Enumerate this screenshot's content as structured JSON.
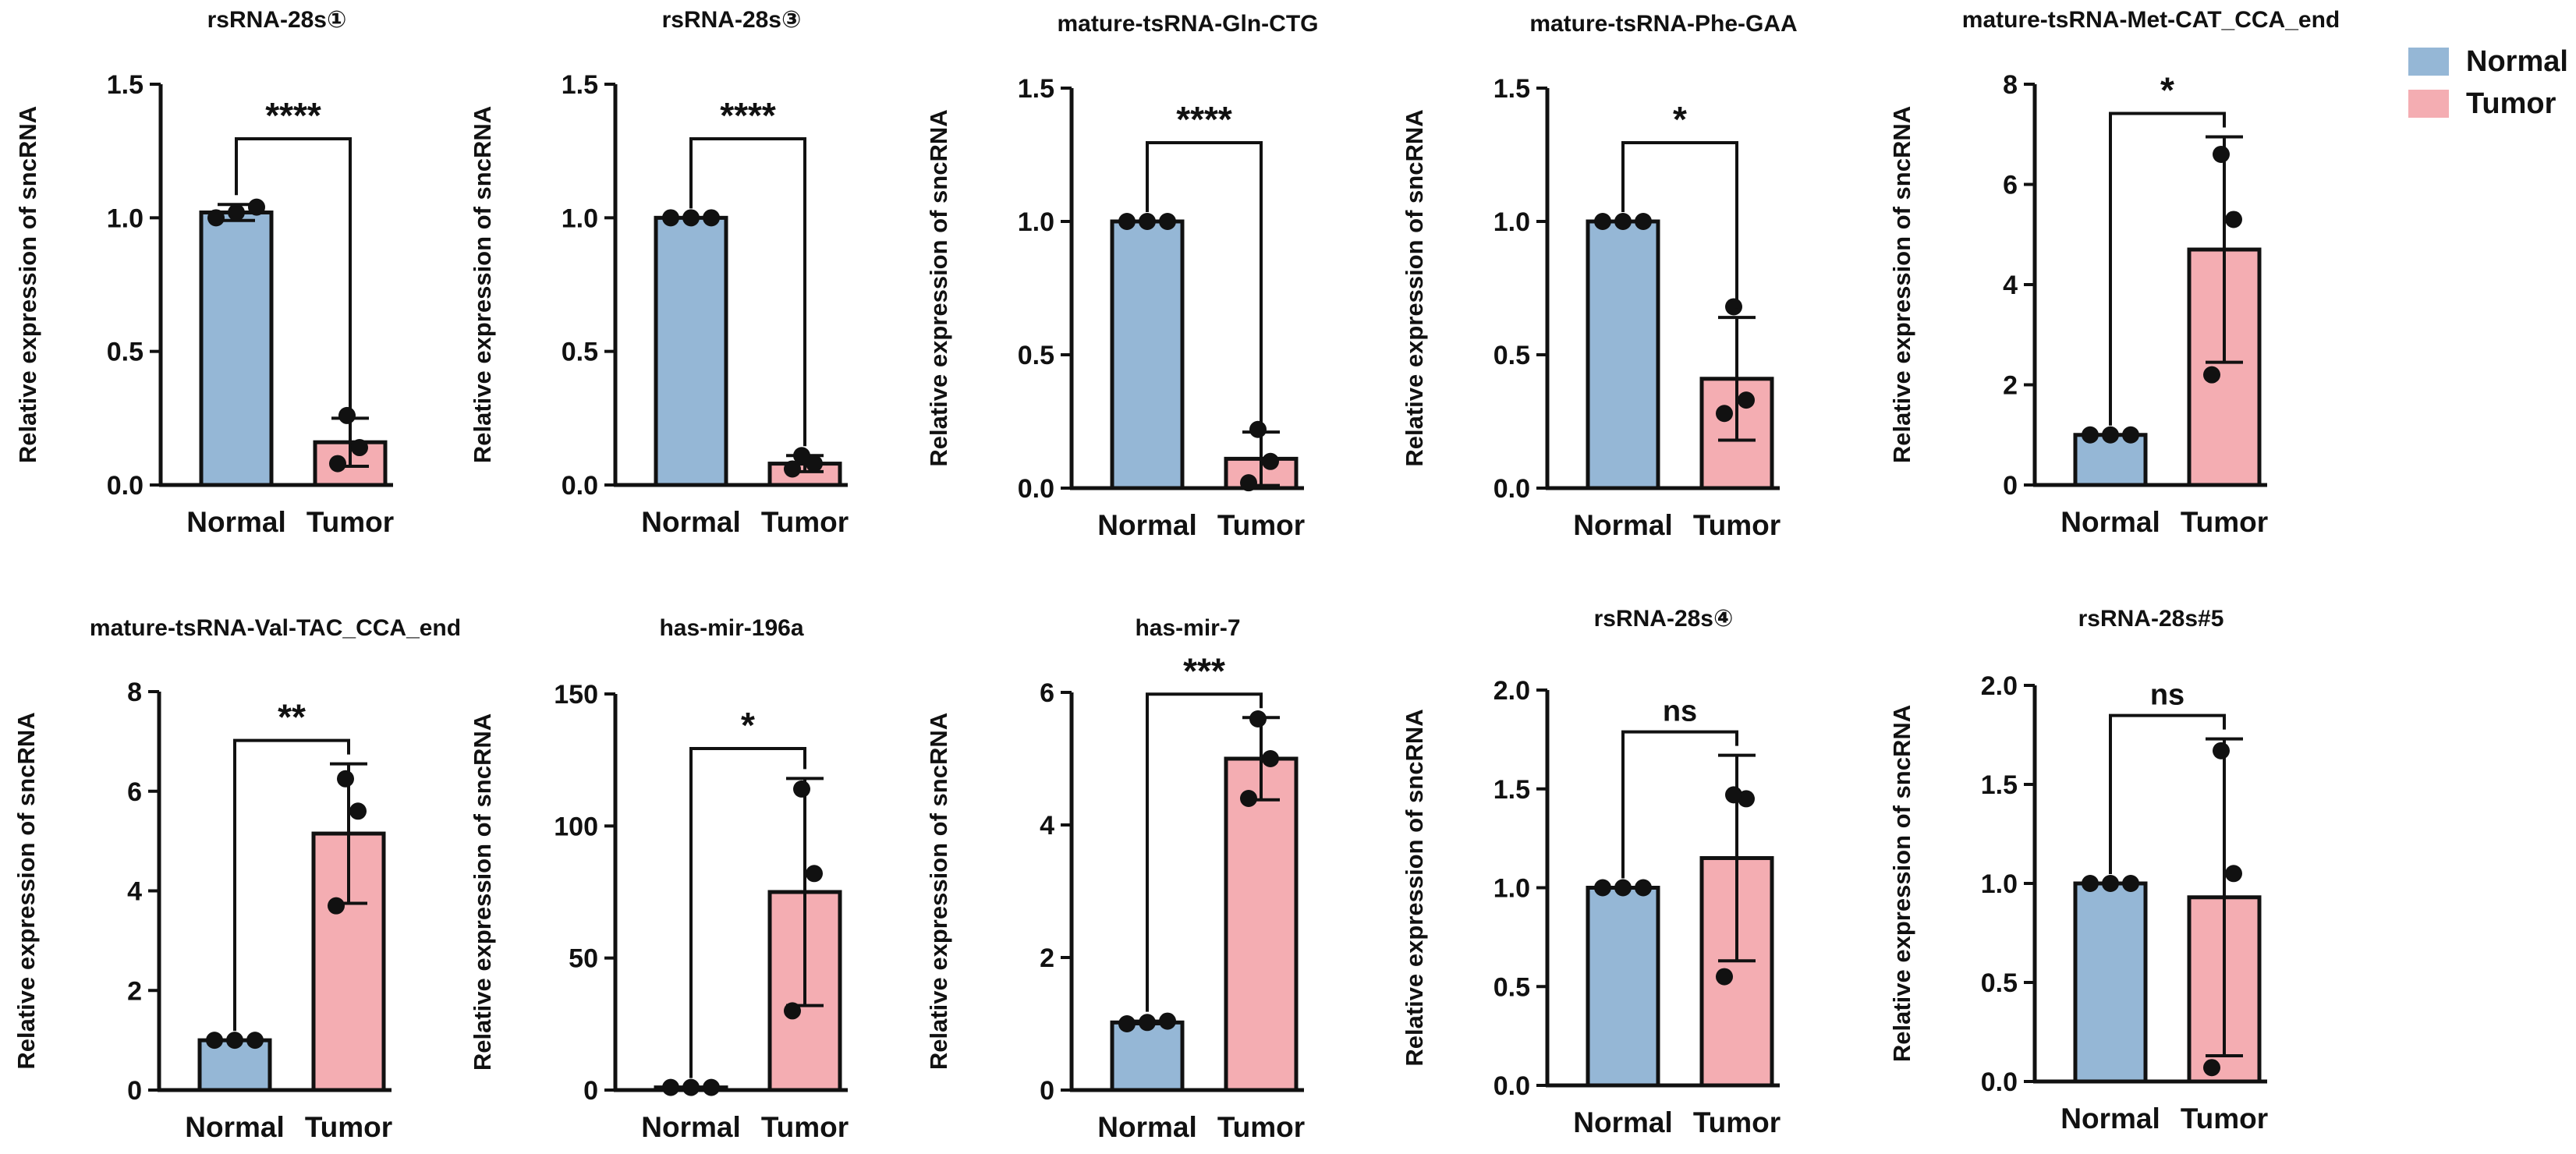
{
  "legend": {
    "normal_label": "Normal",
    "tumor_label": "Tumor"
  },
  "colors": {
    "normal": "#95b7d6",
    "tumor": "#f4adb2",
    "stroke": "#111111"
  },
  "chart_data": [
    {
      "type": "bar",
      "title": "rsRNA-28s①",
      "categories": [
        "Normal",
        "Tumor"
      ],
      "ylabel": "Relative expression of sncRNA",
      "ylim": [
        0,
        1.5
      ],
      "yticks": [
        0,
        0.5,
        1.0,
        1.5
      ],
      "tick_labels": [
        "0.0",
        "0.5",
        "1.0",
        "1.5"
      ],
      "means": [
        1.02,
        0.16
      ],
      "sd": [
        0.03,
        0.09
      ],
      "points": [
        [
          1.0,
          1.02,
          1.04
        ],
        [
          0.08,
          0.14,
          0.26
        ]
      ],
      "significance": "****"
    },
    {
      "type": "bar",
      "title": "rsRNA-28s③",
      "categories": [
        "Normal",
        "Tumor"
      ],
      "ylabel": "Relative expression of sncRNA",
      "ylim": [
        0,
        1.5
      ],
      "yticks": [
        0,
        0.5,
        1.0,
        1.5
      ],
      "tick_labels": [
        "0.0",
        "0.5",
        "1.0",
        "1.5"
      ],
      "means": [
        1.0,
        0.08
      ],
      "sd": [
        0.0,
        0.03
      ],
      "points": [
        [
          1.0,
          1.0,
          1.0
        ],
        [
          0.06,
          0.08,
          0.11
        ]
      ],
      "significance": "****"
    },
    {
      "type": "bar",
      "title": "mature-tsRNA-Gln-CTG",
      "categories": [
        "Normal",
        "Tumor"
      ],
      "ylabel": "Relative expression of sncRNA",
      "ylim": [
        0,
        1.5
      ],
      "yticks": [
        0,
        0.5,
        1.0,
        1.5
      ],
      "tick_labels": [
        "0.0",
        "0.5",
        "1.0",
        "1.5"
      ],
      "means": [
        1.0,
        0.11
      ],
      "sd": [
        0.0,
        0.1
      ],
      "points": [
        [
          1.0,
          1.0,
          1.0
        ],
        [
          0.02,
          0.1,
          0.22
        ]
      ],
      "significance": "****"
    },
    {
      "type": "bar",
      "title": "mature-tsRNA-Phe-GAA",
      "categories": [
        "Normal",
        "Tumor"
      ],
      "ylabel": "Relative expression of sncRNA",
      "ylim": [
        0,
        1.5
      ],
      "yticks": [
        0,
        0.5,
        1.0,
        1.5
      ],
      "tick_labels": [
        "0.0",
        "0.5",
        "1.0",
        "1.5"
      ],
      "means": [
        1.0,
        0.41
      ],
      "sd": [
        0.0,
        0.23
      ],
      "points": [
        [
          1.0,
          1.0,
          1.0
        ],
        [
          0.28,
          0.33,
          0.68
        ]
      ],
      "significance": "*"
    },
    {
      "type": "bar",
      "title": "mature-tsRNA-Met-CAT_CCA_end",
      "categories": [
        "Normal",
        "Tumor"
      ],
      "ylabel": "Relative expression of sncRNA",
      "ylim": [
        0,
        8
      ],
      "yticks": [
        0,
        2,
        4,
        6,
        8
      ],
      "tick_labels": [
        "0",
        "2",
        "4",
        "6",
        "8"
      ],
      "means": [
        1.0,
        4.7
      ],
      "sd": [
        0.0,
        2.25
      ],
      "points": [
        [
          1.0,
          1.0,
          1.0
        ],
        [
          2.2,
          5.3,
          6.6
        ]
      ],
      "significance": "*"
    },
    {
      "type": "bar",
      "title": "mature-tsRNA-Val-TAC_CCA_end",
      "categories": [
        "Normal",
        "Tumor"
      ],
      "ylabel": "Relative expression of sncRNA",
      "ylim": [
        0,
        8
      ],
      "yticks": [
        0,
        2,
        4,
        6,
        8
      ],
      "tick_labels": [
        "0",
        "2",
        "4",
        "6",
        "8"
      ],
      "means": [
        1.0,
        5.15
      ],
      "sd": [
        0.0,
        1.4
      ],
      "points": [
        [
          1.0,
          1.0,
          1.0
        ],
        [
          3.7,
          5.6,
          6.25
        ]
      ],
      "significance": "**"
    },
    {
      "type": "bar",
      "title": "has-mir-196a",
      "categories": [
        "Normal",
        "Tumor"
      ],
      "ylabel": "Relative expression of sncRNA",
      "ylim": [
        0,
        150
      ],
      "yticks": [
        0,
        50,
        100,
        150
      ],
      "tick_labels": [
        "0",
        "50",
        "100",
        "150"
      ],
      "means": [
        1.0,
        75
      ],
      "sd": [
        0.0,
        43
      ],
      "points": [
        [
          1.0,
          1.0,
          1.0
        ],
        [
          30,
          82,
          114
        ]
      ],
      "significance": "*"
    },
    {
      "type": "bar",
      "title": "has-mir-7",
      "categories": [
        "Normal",
        "Tumor"
      ],
      "ylabel": "Relative expression of sncRNA",
      "ylim": [
        0,
        6
      ],
      "yticks": [
        0,
        2,
        4,
        6
      ],
      "tick_labels": [
        "0",
        "2",
        "4",
        "6"
      ],
      "means": [
        1.02,
        5.0
      ],
      "sd": [
        0.02,
        0.62
      ],
      "points": [
        [
          1.0,
          1.02,
          1.04
        ],
        [
          4.4,
          5.0,
          5.6
        ]
      ],
      "significance": "***"
    },
    {
      "type": "bar",
      "title": "rsRNA-28s④",
      "categories": [
        "Normal",
        "Tumor"
      ],
      "ylabel": "Relative expression of sncRNA",
      "ylim": [
        0,
        2.0
      ],
      "yticks": [
        0,
        0.5,
        1.0,
        1.5,
        2.0
      ],
      "tick_labels": [
        "0.0",
        "0.5",
        "1.0",
        "1.5",
        "2.0"
      ],
      "means": [
        1.0,
        1.15
      ],
      "sd": [
        0.0,
        0.52
      ],
      "points": [
        [
          1.0,
          1.0,
          1.0
        ],
        [
          0.55,
          1.45,
          1.47
        ]
      ],
      "significance": "ns"
    },
    {
      "type": "bar",
      "title": "rsRNA-28s#5",
      "categories": [
        "Normal",
        "Tumor"
      ],
      "ylabel": "Relative expression of sncRNA",
      "ylim": [
        0,
        2.0
      ],
      "yticks": [
        0,
        0.5,
        1.0,
        1.5,
        2.0
      ],
      "tick_labels": [
        "0.0",
        "0.5",
        "1.0",
        "1.5",
        "2.0"
      ],
      "means": [
        1.0,
        0.93
      ],
      "sd": [
        0.0,
        0.8
      ],
      "points": [
        [
          1.0,
          1.0,
          1.0
        ],
        [
          0.07,
          1.05,
          1.67
        ]
      ],
      "significance": "ns"
    }
  ]
}
